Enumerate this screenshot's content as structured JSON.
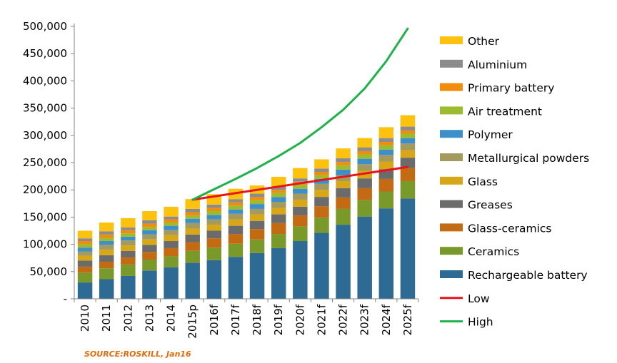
{
  "chart_data": {
    "type": "bar",
    "stacked": true,
    "categories": [
      "2010",
      "2011",
      "2012",
      "2013",
      "2014",
      "2015p",
      "2016f",
      "2017f",
      "2018f",
      "2019f",
      "2020f",
      "2021f",
      "2022f",
      "2023f",
      "2024f",
      "2025f"
    ],
    "yticks": [
      "-",
      "50,000",
      "100,000",
      "150,000",
      "200,000",
      "250,000",
      "300,000",
      "350,000",
      "400,000",
      "450,000",
      "500,000"
    ],
    "ylim": [
      0,
      500000
    ],
    "legend_position": "right",
    "series": [
      {
        "name": "Rechargeable battery",
        "color": "#2e6b94",
        "values": [
          30000,
          36000,
          42000,
          52000,
          58000,
          66000,
          71000,
          77000,
          84000,
          93000,
          106000,
          121000,
          136000,
          151000,
          166000,
          184000
        ]
      },
      {
        "name": "Ceramics",
        "color": "#799a2a",
        "values": [
          18000,
          20000,
          21000,
          20000,
          20000,
          22000,
          23000,
          24000,
          25000,
          26000,
          27000,
          28000,
          29000,
          30000,
          31000,
          32000
        ]
      },
      {
        "name": "Glass-ceramics",
        "color": "#c36b12",
        "values": [
          11000,
          12000,
          13000,
          14000,
          15000,
          16000,
          17000,
          18000,
          19000,
          20000,
          20000,
          21000,
          21000,
          22000,
          23000,
          24000
        ]
      },
      {
        "name": "Greases",
        "color": "#6b6b6b",
        "values": [
          11000,
          12000,
          12000,
          13000,
          13000,
          14000,
          14000,
          15000,
          15000,
          16000,
          16000,
          17000,
          17000,
          18000,
          18000,
          19000
        ]
      },
      {
        "name": "Glass",
        "color": "#d7a718",
        "values": [
          9000,
          10000,
          10000,
          10000,
          11000,
          11000,
          11000,
          12000,
          12000,
          12000,
          13000,
          13000,
          13000,
          14000,
          14000,
          14000
        ]
      },
      {
        "name": "Metallurgical powders",
        "color": "#a49a5e",
        "values": [
          8000,
          9000,
          9000,
          9000,
          9000,
          10000,
          10000,
          10000,
          10000,
          11000,
          11000,
          11000,
          11000,
          12000,
          12000,
          12000
        ]
      },
      {
        "name": "Polymer",
        "color": "#3d8fc9",
        "values": [
          7000,
          7000,
          7000,
          8000,
          8000,
          8000,
          8000,
          8000,
          9000,
          9000,
          9000,
          9000,
          10000,
          10000,
          10000,
          10000
        ]
      },
      {
        "name": "Air treatment",
        "color": "#9dbb2e",
        "values": [
          6000,
          6000,
          6000,
          6000,
          6000,
          6000,
          7000,
          7000,
          7000,
          7000,
          7000,
          7000,
          8000,
          8000,
          8000,
          8000
        ]
      },
      {
        "name": "Primary battery",
        "color": "#f08c0e",
        "values": [
          6000,
          6000,
          6000,
          6000,
          6000,
          6000,
          6000,
          6000,
          6000,
          6000,
          6000,
          6000,
          6000,
          6000,
          6000,
          6000
        ]
      },
      {
        "name": "Aluminium",
        "color": "#8c8c8c",
        "values": [
          5000,
          6000,
          5000,
          6000,
          5000,
          6000,
          6000,
          6000,
          6000,
          6000,
          6000,
          6000,
          7000,
          7000,
          7000,
          7000
        ]
      },
      {
        "name": "Other",
        "color": "#fdc20d",
        "values": [
          14000,
          16000,
          17000,
          17000,
          18000,
          18000,
          19000,
          19000,
          15000,
          18000,
          19000,
          17000,
          18000,
          17000,
          20000,
          21000
        ]
      }
    ],
    "lines": [
      {
        "name": "Low",
        "color": "#e8141a",
        "x": [
          "2015p",
          "2025f"
        ],
        "values": [
          182000,
          242000
        ]
      },
      {
        "name": "High",
        "color": "#1fb14a",
        "x": [
          "2015p",
          "2016f",
          "2017f",
          "2018f",
          "2019f",
          "2020f",
          "2021f",
          "2022f",
          "2023f",
          "2024f",
          "2025f"
        ],
        "values": [
          182000,
          201000,
          220000,
          240000,
          262000,
          286000,
          315000,
          347000,
          386000,
          436000,
          496000
        ]
      }
    ],
    "legend_order": [
      "Other",
      "Aluminium",
      "Primary battery",
      "Air treatment",
      "Polymer",
      "Metallurgical powders",
      "Glass",
      "Greases",
      "Glass-ceramics",
      "Ceramics",
      "Rechargeable battery",
      "Low",
      "High"
    ],
    "source": "SOURCE:ROSKILL, Jan16"
  }
}
